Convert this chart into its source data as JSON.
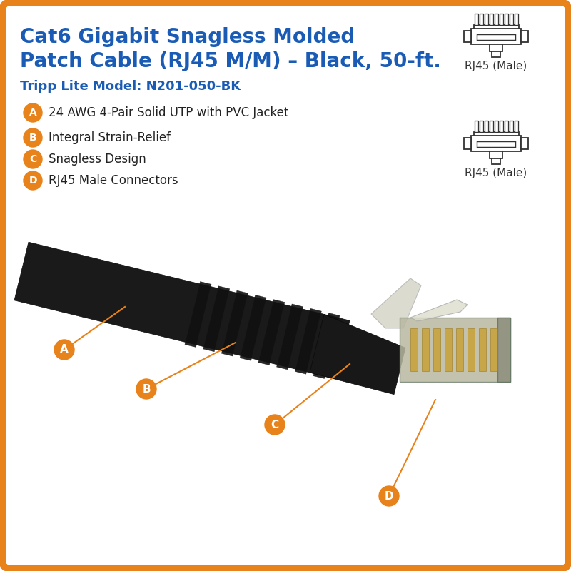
{
  "bg_color": "#ffffff",
  "border_color": "#E8821A",
  "border_linewidth": 7,
  "title_line1": "Cat6 Gigabit Snagless Molded",
  "title_line2": "Patch Cable (RJ45 M/M) – Black, 50-ft.",
  "title_color": "#1A5CB5",
  "subtitle": "Tripp Lite Model: N201-050-BK",
  "subtitle_color": "#1A5CB5",
  "features": [
    {
      "label": "A",
      "text": "24 AWG 4-Pair Solid UTP with PVC Jacket"
    },
    {
      "label": "B",
      "text": "Integral Strain-Relief"
    },
    {
      "label": "C",
      "text": "Snagless Design"
    },
    {
      "label": "D",
      "text": "RJ45 Male Connectors"
    }
  ],
  "badge_color": "#E8821A",
  "badge_text_color": "#ffffff",
  "connector_label": "RJ45 (Male)",
  "text_color": "#222222",
  "cable_color": "#1a1a1a",
  "cable_dark": "#0d0d0d",
  "connector_body_color": "#b0b090",
  "connector_edge_color": "#888870"
}
